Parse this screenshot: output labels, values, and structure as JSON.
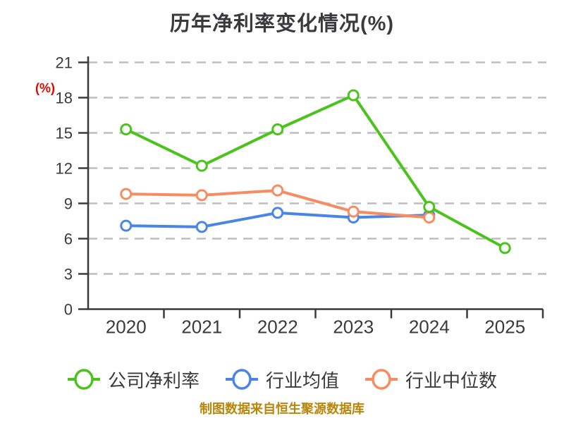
{
  "page": {
    "title": "历年净利率变化情况(%)",
    "y_unit": "(%)",
    "footer": "制图数据来自恒生聚源数据库"
  },
  "colors": {
    "text": "#3a3a3c",
    "axis": "#3a3a3c",
    "grid": "#bdbdbd",
    "y_unit_red": "#e10600",
    "footer_orange": "#b8860b",
    "marker_fill": "#ffffff"
  },
  "chart_data": {
    "type": "line",
    "title": "历年净利率变化情况(%)",
    "ylabel": "(%)",
    "categories": [
      "2020",
      "2021",
      "2022",
      "2023",
      "2024",
      "2025"
    ],
    "series": [
      {
        "name": "公司净利率",
        "color": "#4bc31d",
        "values": [
          15.3,
          12.2,
          15.3,
          18.2,
          8.7,
          5.2
        ]
      },
      {
        "name": "行业均值",
        "color": "#4a85e6",
        "values": [
          7.1,
          7.0,
          8.2,
          7.8,
          8.0,
          null
        ]
      },
      {
        "name": "行业中位数",
        "color": "#f78c62",
        "values": [
          9.8,
          9.7,
          10.1,
          8.3,
          7.8,
          null
        ]
      }
    ],
    "ylim": [
      0,
      21
    ],
    "y_ticks": [
      0,
      3,
      6,
      9,
      12,
      15,
      18,
      21
    ],
    "grid": "dashed-horizontal",
    "legend_position": "bottom",
    "annotation": "制图数据来自恒生聚源数据库"
  }
}
